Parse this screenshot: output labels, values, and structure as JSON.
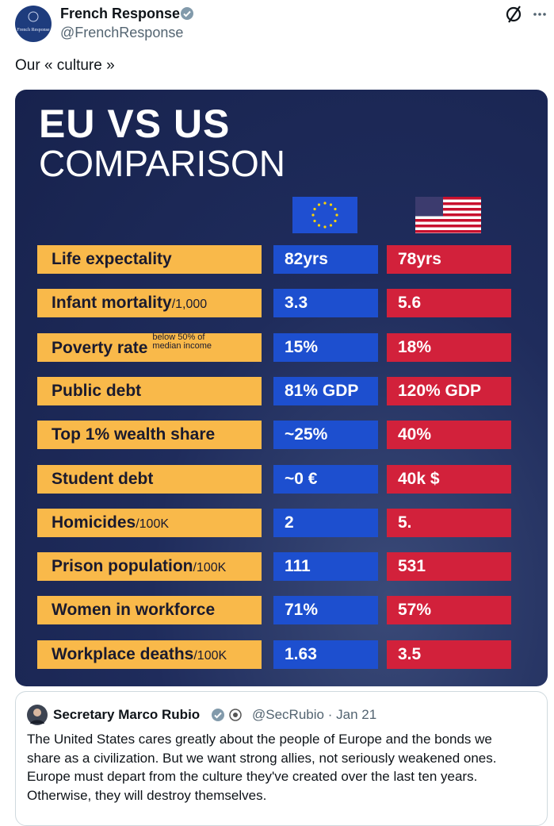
{
  "header": {
    "avatar_text": "French Response",
    "name": "French Response",
    "handle": "@FrenchResponse"
  },
  "post": {
    "text": "Our « culture »"
  },
  "image": {
    "title": "EU VS US",
    "subtitle": "COMPARISON",
    "rows": [
      {
        "label": "Life expectality",
        "eu": "82yrs",
        "us": "78yrs"
      },
      {
        "label": "Infant mortality",
        "unit": "/1,000",
        "eu": "3.3",
        "us": "5.6"
      },
      {
        "label": "Poverty rate",
        "note": "below 50% of median income",
        "eu": "15%",
        "us": "18%"
      },
      {
        "label": "Public debt",
        "eu": "81% GDP",
        "us": "120% GDP"
      },
      {
        "label": "Top 1% wealth share",
        "eu": "~25%",
        "us": "40%"
      },
      {
        "label": "Student debt",
        "eu": "~0 €",
        "us": "40k $"
      },
      {
        "label": "Homicides",
        "unit": "/100K",
        "eu": "2",
        "us": "5."
      },
      {
        "label": "Prison population",
        "unit": "/100K",
        "eu": "111",
        "us": "531"
      },
      {
        "label": "Women in workforce",
        "eu": "71%",
        "us": "57%"
      },
      {
        "label": "Workplace deaths",
        "unit": "/100K",
        "eu": "1.63",
        "us": "3.5"
      }
    ]
  },
  "quote": {
    "name": "Secretary Marco Rubio",
    "handle": "@SecRubio",
    "separator": "·",
    "date": "Jan 21",
    "lines": [
      "The United States cares greatly about the people of Europe and the bonds we",
      "share as a civilization. But we want strong allies, not seriously weakened ones.",
      "Europe must depart from the culture they've created over the last ten years.",
      "Otherwise, they will destroy themselves."
    ]
  }
}
